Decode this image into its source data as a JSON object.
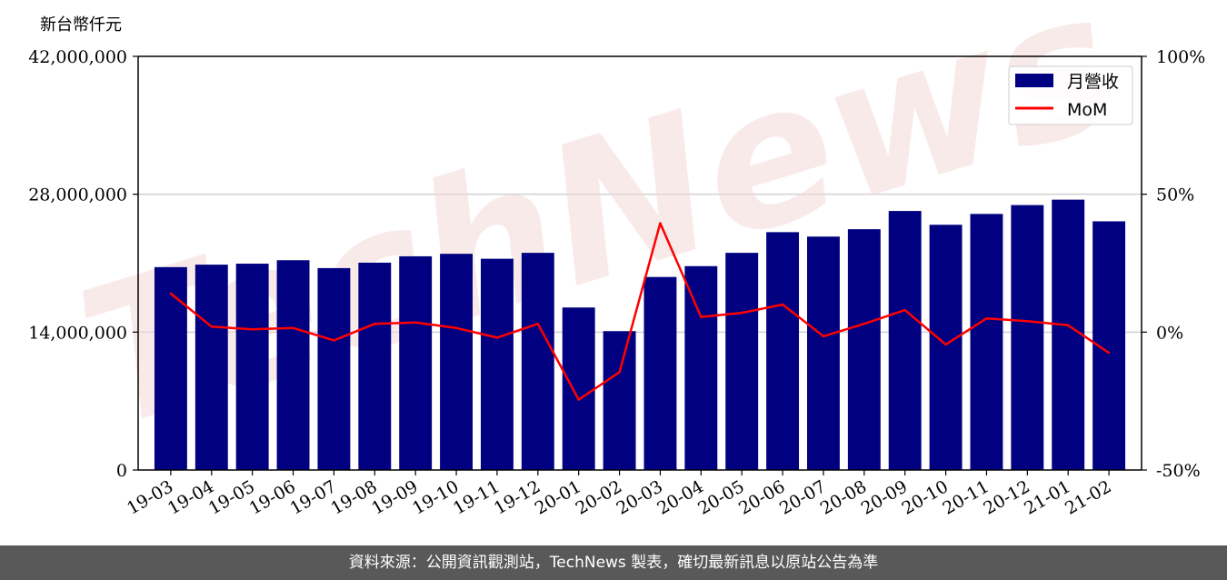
{
  "chart_data": {
    "type": "bar",
    "unit_label": "新台幣仟元",
    "categories": [
      "19-03",
      "19-04",
      "19-05",
      "19-06",
      "19-07",
      "19-08",
      "19-09",
      "19-10",
      "19-11",
      "19-12",
      "20-01",
      "20-02",
      "20-03",
      "20-04",
      "20-05",
      "20-06",
      "20-07",
      "20-08",
      "20-09",
      "20-10",
      "20-11",
      "20-12",
      "21-01",
      "21-02"
    ],
    "series": [
      {
        "name": "月營收",
        "type": "bar",
        "axis": "left",
        "color": "#000080",
        "values": [
          20600000,
          20850000,
          20950000,
          21300000,
          20500000,
          21050000,
          21700000,
          21950000,
          21450000,
          22050000,
          16500000,
          14100000,
          19600000,
          20700000,
          22050000,
          24150000,
          23700000,
          24450000,
          26300000,
          24900000,
          26000000,
          26900000,
          27450000,
          25250000
        ]
      },
      {
        "name": "MoM",
        "type": "line",
        "axis": "right",
        "color": "#ff0000",
        "values": [
          14,
          2,
          1,
          1.5,
          -3,
          3,
          3.5,
          1.5,
          -2,
          3,
          -24.5,
          -14.5,
          39.5,
          5.5,
          7,
          10,
          -1.5,
          3,
          8,
          -4.5,
          5,
          4,
          2.5,
          -7.5
        ]
      }
    ],
    "y_left": {
      "min": 0,
      "max": 42000000,
      "ticks": [
        0,
        14000000,
        28000000,
        42000000
      ],
      "tick_labels": [
        "0",
        "14,000,000",
        "28,000,000",
        "42,000,000"
      ]
    },
    "y_right": {
      "min": -50,
      "max": 100,
      "ticks": [
        -50,
        0,
        50,
        100
      ],
      "tick_labels": [
        "-50%",
        "0%",
        "50%",
        "100%"
      ]
    },
    "grid": "horizontal",
    "legend_position": "top-right",
    "watermark": "TechNews"
  },
  "footer_text": "資料來源：公開資訊觀測站，TechNews 製表，確切最新訊息以原站公告為準"
}
